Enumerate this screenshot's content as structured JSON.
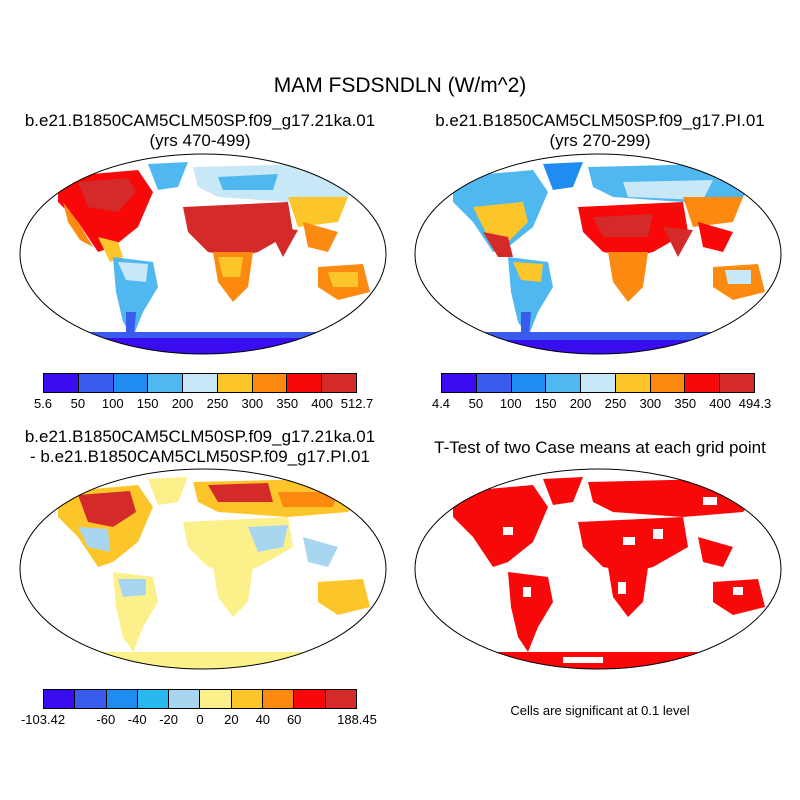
{
  "title": "MAM FSDSNDLN (W/m^2)",
  "panels": [
    {
      "title_line1": "b.e21.B1850CAM5CLM50SP.f09_g17.21ka.01",
      "title_line2": "(yrs 470-499)",
      "colorbar": {
        "colors": [
          "#3a0df0",
          "#3a5cee",
          "#1e8cf0",
          "#50b8f0",
          "#c8e8f8",
          "#fcc62a",
          "#fc8a10",
          "#f80808",
          "#d42a2a"
        ],
        "labels": [
          "5.6",
          "50",
          "100",
          "150",
          "200",
          "250",
          "300",
          "350",
          "400",
          "512.7"
        ]
      }
    },
    {
      "title_line1": "b.e21.B1850CAM5CLM50SP.f09_g17.PI.01",
      "title_line2": "(yrs 270-299)",
      "colorbar": {
        "colors": [
          "#3a0df0",
          "#3a5cee",
          "#1e8cf0",
          "#50b8f0",
          "#c8e8f8",
          "#fcc62a",
          "#fc8a10",
          "#f80808",
          "#d42a2a"
        ],
        "labels": [
          "4.4",
          "50",
          "100",
          "150",
          "200",
          "250",
          "300",
          "350",
          "400",
          "494.3"
        ]
      }
    },
    {
      "title_line1": "b.e21.B1850CAM5CLM50SP.f09_g17.21ka.01",
      "title_line2": "- b.e21.B1850CAM5CLM50SP.f09_g17.PI.01",
      "colorbar": {
        "colors": [
          "#3a0df0",
          "#3a5cee",
          "#1e8cf0",
          "#2ab8f0",
          "#a8d6f0",
          "#fcf08a",
          "#fcc62a",
          "#fc8a10",
          "#f80808",
          "#d42a2a"
        ],
        "labels": [
          "-103.42",
          "",
          "-60",
          "-40",
          "-20",
          "0",
          "20",
          "40",
          "60",
          "",
          "188.45"
        ]
      }
    },
    {
      "title_line1": "T-Test of two Case means at each grid point",
      "note": "Cells are significant at 0.1 level",
      "fill_color": "#f80808"
    }
  ]
}
